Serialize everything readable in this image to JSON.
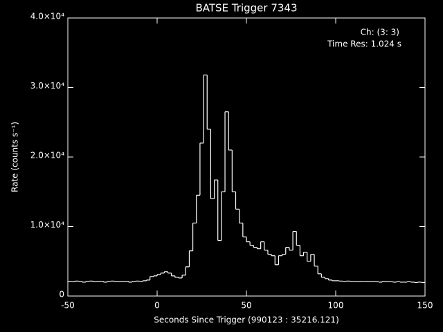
{
  "chart_data": {
    "type": "step",
    "title": "BATSE Trigger 7343",
    "xlabel": "Seconds Since Trigger (990123 : 35216.121)",
    "ylabel": "Rate (counts s⁻¹)",
    "annotations": [
      "Ch: (3: 3)",
      "Time Res: 1.024 s"
    ],
    "color": "#ffffff",
    "xlim": [
      -50,
      150
    ],
    "xticks": [
      -50,
      0,
      50,
      100,
      150
    ],
    "ylim": [
      0,
      40000
    ],
    "yticks": [
      0,
      {
        "value": 10000,
        "label": "1.0×10⁴"
      },
      {
        "value": 20000,
        "label": "2.0×10⁴"
      },
      {
        "value": 30000,
        "label": "3.0×10⁴"
      },
      {
        "value": 40000,
        "label": "4.0×10⁴"
      }
    ],
    "x": [
      -50,
      -48,
      -46,
      -44,
      -42,
      -40,
      -38,
      -36,
      -34,
      -32,
      -30,
      -28,
      -26,
      -24,
      -22,
      -20,
      -18,
      -16,
      -14,
      -12,
      -10,
      -8,
      -6,
      -4,
      -2,
      0,
      2,
      4,
      6,
      8,
      10,
      12,
      14,
      16,
      18,
      20,
      22,
      24,
      26,
      28,
      30,
      32,
      34,
      36,
      38,
      40,
      42,
      44,
      46,
      48,
      50,
      52,
      54,
      56,
      58,
      60,
      62,
      64,
      66,
      68,
      70,
      72,
      74,
      76,
      78,
      80,
      82,
      84,
      86,
      88,
      90,
      92,
      94,
      96,
      98,
      100,
      102,
      104,
      106,
      108,
      110,
      112,
      114,
      116,
      118,
      120,
      122,
      124,
      126,
      128,
      130,
      132,
      134,
      136,
      138,
      140,
      142,
      144,
      146,
      148
    ],
    "values": [
      2100,
      2050,
      2150,
      2100,
      2000,
      2100,
      2150,
      2050,
      2100,
      2100,
      2000,
      2100,
      2150,
      2100,
      2050,
      2100,
      2100,
      2000,
      2100,
      2150,
      2100,
      2200,
      2300,
      2800,
      2900,
      3100,
      3300,
      3500,
      3300,
      2900,
      2700,
      2600,
      3000,
      4200,
      6500,
      10500,
      14500,
      22000,
      31800,
      24000,
      14000,
      16700,
      8000,
      15000,
      26500,
      21000,
      15000,
      12500,
      10500,
      8500,
      7800,
      7300,
      7000,
      6800,
      7800,
      6600,
      6000,
      5800,
      4500,
      5800,
      6000,
      7000,
      6600,
      9300,
      7300,
      5800,
      6300,
      5000,
      6000,
      4300,
      3200,
      2700,
      2500,
      2300,
      2200,
      2200,
      2150,
      2100,
      2150,
      2100,
      2100,
      2050,
      2100,
      2100,
      2050,
      2100,
      2050,
      2000,
      2100,
      2050,
      2050,
      2000,
      2050,
      2000,
      2000,
      2050,
      2000,
      1950,
      2000,
      1950
    ]
  }
}
